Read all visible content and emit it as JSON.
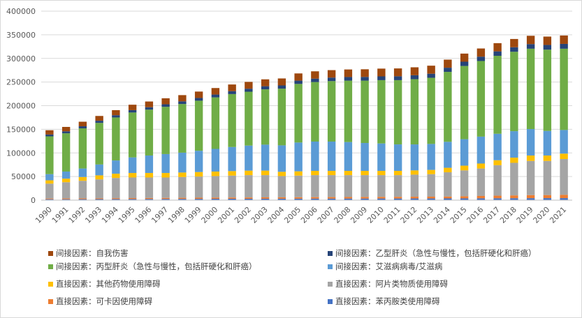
{
  "chart_data": {
    "type": "bar",
    "stacked": true,
    "title": "",
    "xlabel": "",
    "ylabel": "",
    "ylim": [
      0,
      400000
    ],
    "yticks": [
      0,
      50000,
      100000,
      150000,
      200000,
      250000,
      300000,
      350000,
      400000
    ],
    "ytick_labels": [
      "0",
      "50000",
      "100000",
      "150000",
      "200000",
      "250000",
      "300000",
      "350000",
      "400000"
    ],
    "grid": true,
    "legend_position": "bottom",
    "categories": [
      "1990",
      "1991",
      "1992",
      "1993",
      "1994",
      "1995",
      "1996",
      "1997",
      "1998",
      "1999",
      "2000",
      "2001",
      "2002",
      "2003",
      "2004",
      "2005",
      "2006",
      "2007",
      "2008",
      "2009",
      "2010",
      "2011",
      "2012",
      "2013",
      "2014",
      "2015",
      "2016",
      "2017",
      "2018",
      "2019",
      "2020",
      "2021"
    ],
    "series": [
      {
        "name": "直接因素：苯丙胺类使用障碍",
        "color": "#4472C4",
        "values": [
          2000,
          2000,
          2100,
          2200,
          2300,
          2400,
          2500,
          2600,
          2700,
          2800,
          2900,
          3000,
          3000,
          3100,
          3100,
          3200,
          3300,
          3300,
          3400,
          3400,
          3500,
          3500,
          3600,
          3600,
          3700,
          3800,
          3900,
          4000,
          4100,
          4200,
          4300,
          4300
        ]
      },
      {
        "name": "直接因素：可卡因使用障碍",
        "color": "#ED7D31",
        "values": [
          1500,
          1600,
          1700,
          1800,
          1900,
          2000,
          2100,
          2200,
          2300,
          2400,
          2500,
          2600,
          2700,
          2800,
          2900,
          3000,
          3100,
          3200,
          3300,
          3400,
          3500,
          3600,
          3700,
          3800,
          4000,
          4500,
          5000,
          5500,
          6000,
          6500,
          6500,
          7000
        ]
      },
      {
        "name": "直接因素：阿片类物质使用障碍",
        "color": "#A5A5A5",
        "values": [
          31500,
          34400,
          37200,
          40000,
          42800,
          43600,
          43400,
          43200,
          44000,
          44800,
          45600,
          46400,
          47300,
          47100,
          45000,
          45800,
          46600,
          46500,
          46300,
          46200,
          46000,
          45900,
          46700,
          47600,
          51300,
          54700,
          58100,
          64500,
          68900,
          72300,
          72200,
          75700
        ]
      },
      {
        "name": "直接因素：其他药物使用障碍",
        "color": "#FFC000",
        "values": [
          7000,
          7500,
          8000,
          8500,
          9000,
          9500,
          9500,
          9500,
          9500,
          9500,
          9500,
          9500,
          9500,
          9500,
          9000,
          9000,
          9000,
          9000,
          9000,
          9000,
          9000,
          9000,
          9000,
          9000,
          9500,
          10000,
          10500,
          10500,
          11000,
          11500,
          11500,
          11500
        ]
      },
      {
        "name": "间接因素：艾滋病病毒/艾滋病",
        "color": "#5B9BD5",
        "values": [
          13000,
          15000,
          18000,
          23000,
          28000,
          33000,
          37000,
          40000,
          42000,
          45000,
          48000,
          51000,
          53000,
          55000,
          56000,
          61000,
          62000,
          62000,
          61000,
          59000,
          58000,
          56000,
          55000,
          55000,
          55000,
          56000,
          57000,
          56000,
          56000,
          56000,
          52000,
          50000
        ]
      },
      {
        "name": "间接因素：丙型肝炎（急性与慢性，包括肝硬化和肝癌）",
        "color": "#70AD47",
        "values": [
          80000,
          81000,
          85000,
          88000,
          91000,
          95000,
          97000,
          100000,
          103000,
          106000,
          109000,
          112000,
          114000,
          117000,
          120000,
          124000,
          126000,
          128000,
          130000,
          132000,
          134000,
          136000,
          138000,
          140000,
          148000,
          155000,
          160000,
          165000,
          168000,
          170000,
          172000,
          172000
        ]
      },
      {
        "name": "间接因素：乙型肝炎（急性与慢性，包括肝硬化和肝癌）",
        "color": "#264478",
        "values": [
          4000,
          4200,
          4400,
          4600,
          4800,
          5000,
          5200,
          5400,
          5600,
          5800,
          6000,
          6200,
          6400,
          6600,
          6800,
          7000,
          7200,
          7400,
          7600,
          7800,
          8000,
          8200,
          8400,
          8600,
          8800,
          9000,
          9200,
          9400,
          9600,
          9800,
          10000,
          10200
        ]
      },
      {
        "name": "间接因素：自我伤害",
        "color": "#9E480E",
        "values": [
          9000,
          9300,
          9600,
          10100,
          10700,
          11500,
          12100,
          12700,
          13200,
          13500,
          13800,
          14100,
          14400,
          14600,
          14800,
          15200,
          15500,
          15800,
          16000,
          16200,
          16400,
          16600,
          16800,
          17000,
          17100,
          17200,
          17300,
          17400,
          17500,
          17600,
          17700,
          17800
        ]
      }
    ]
  }
}
